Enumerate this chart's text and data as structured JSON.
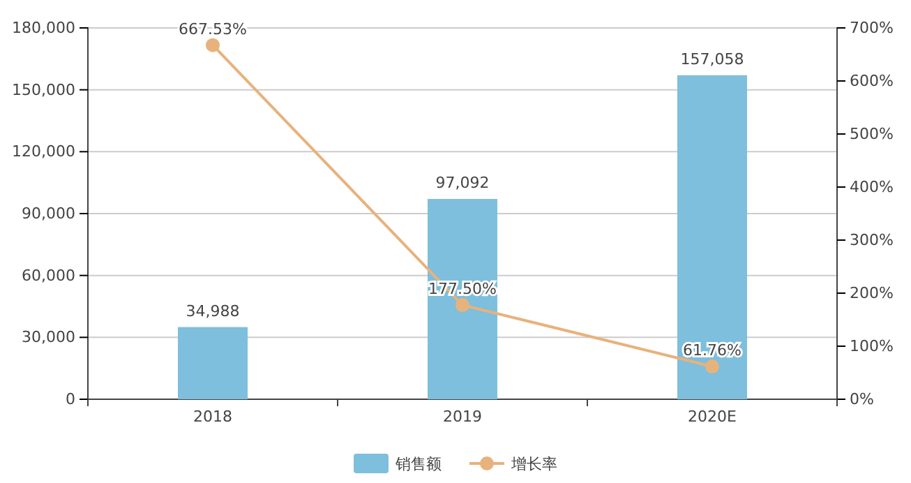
{
  "chart_data": {
    "type": "bar",
    "categories": [
      "2018",
      "2019",
      "2020E"
    ],
    "series": [
      {
        "name": "销售额",
        "color": "#7dbfdc",
        "values": [
          34988,
          97092,
          157058
        ],
        "value_labels": [
          "34,988",
          "97,092",
          "157,058"
        ]
      },
      {
        "name": "增长率",
        "type": "line",
        "axis": "y2",
        "color": "#e8b27c",
        "values": [
          667.53,
          177.5,
          61.76
        ],
        "value_labels": [
          "667.53%",
          "177.50%",
          "61.76%"
        ]
      }
    ],
    "ylim": [
      0,
      180000
    ],
    "yticks": [
      {
        "value": 0,
        "label": "0"
      },
      {
        "value": 30000,
        "label": "30,000"
      },
      {
        "value": 60000,
        "label": "60,000"
      },
      {
        "value": 90000,
        "label": "90,000"
      },
      {
        "value": 120000,
        "label": "120,000"
      },
      {
        "value": 150000,
        "label": "150,000"
      },
      {
        "value": 180000,
        "label": "180,000"
      }
    ],
    "y2lim": [
      0,
      700
    ],
    "y2ticks": [
      {
        "value": 0,
        "label": "0%"
      },
      {
        "value": 100,
        "label": "100%"
      },
      {
        "value": 200,
        "label": "200%"
      },
      {
        "value": 300,
        "label": "300%"
      },
      {
        "value": 400,
        "label": "400%"
      },
      {
        "value": 500,
        "label": "500%"
      },
      {
        "value": 600,
        "label": "600%"
      },
      {
        "value": 700,
        "label": "700%"
      }
    ],
    "grid": "y",
    "legend": "bottom",
    "marker": "circle",
    "line_style": "solid"
  }
}
